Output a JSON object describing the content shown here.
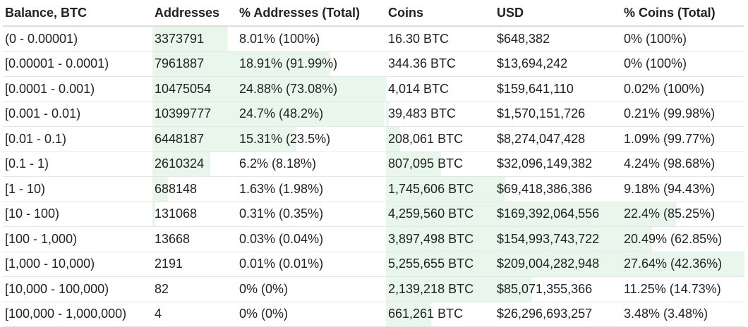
{
  "colors": {
    "bar_fill": "#e8f6ec",
    "header_rule": "#dedede",
    "row_rule": "#e6e6e6",
    "text": "#222222"
  },
  "table": {
    "headers": [
      "Balance, BTC",
      "Addresses",
      "% Addresses (Total)",
      "Coins",
      "USD",
      "% Coins (Total)"
    ],
    "rows": [
      {
        "balance": "(0 - 0.00001)",
        "addresses": "3373791",
        "pct_addresses": "8.01% (100%)",
        "coins": "16.30 BTC",
        "usd": "$648,382",
        "pct_coins": "0% (100%)",
        "addr_share": 8.01,
        "coin_share": 0
      },
      {
        "balance": "[0.00001 - 0.0001)",
        "addresses": "7961887",
        "pct_addresses": "18.91% (91.99%)",
        "coins": "344.36 BTC",
        "usd": "$13,694,242",
        "pct_coins": "0% (100%)",
        "addr_share": 18.91,
        "coin_share": 0
      },
      {
        "balance": "[0.0001 - 0.001)",
        "addresses": "10475054",
        "pct_addresses": "24.88% (73.08%)",
        "coins": "4,014 BTC",
        "usd": "$159,641,110",
        "pct_coins": "0.02% (100%)",
        "addr_share": 24.88,
        "coin_share": 0.02
      },
      {
        "balance": "[0.001 - 0.01)",
        "addresses": "10399777",
        "pct_addresses": "24.7% (48.2%)",
        "coins": "39,483 BTC",
        "usd": "$1,570,151,726",
        "pct_coins": "0.21% (99.98%)",
        "addr_share": 24.7,
        "coin_share": 0.21
      },
      {
        "balance": "[0.01 - 0.1)",
        "addresses": "6448187",
        "pct_addresses": "15.31% (23.5%)",
        "coins": "208,061 BTC",
        "usd": "$8,274,047,428",
        "pct_coins": "1.09% (99.77%)",
        "addr_share": 15.31,
        "coin_share": 1.09
      },
      {
        "balance": "[0.1 - 1)",
        "addresses": "2610324",
        "pct_addresses": "6.2% (8.18%)",
        "coins": "807,095 BTC",
        "usd": "$32,096,149,382",
        "pct_coins": "4.24% (98.68%)",
        "addr_share": 6.2,
        "coin_share": 4.24
      },
      {
        "balance": "[1 - 10)",
        "addresses": "688148",
        "pct_addresses": "1.63% (1.98%)",
        "coins": "1,745,606 BTC",
        "usd": "$69,418,386,386",
        "pct_coins": "9.18% (94.43%)",
        "addr_share": 1.63,
        "coin_share": 9.18
      },
      {
        "balance": "[10 - 100)",
        "addresses": "131068",
        "pct_addresses": "0.31% (0.35%)",
        "coins": "4,259,560 BTC",
        "usd": "$169,392,064,556",
        "pct_coins": "22.4% (85.25%)",
        "addr_share": 0.31,
        "coin_share": 22.4
      },
      {
        "balance": "[100 - 1,000)",
        "addresses": "13668",
        "pct_addresses": "0.03% (0.04%)",
        "coins": "3,897,498 BTC",
        "usd": "$154,993,743,722",
        "pct_coins": "20.49% (62.85%)",
        "addr_share": 0.03,
        "coin_share": 20.49
      },
      {
        "balance": "[1,000 - 10,000)",
        "addresses": "2191",
        "pct_addresses": "0.01% (0.01%)",
        "coins": "5,255,655 BTC",
        "usd": "$209,004,282,948",
        "pct_coins": "27.64% (42.36%)",
        "addr_share": 0.01,
        "coin_share": 27.64
      },
      {
        "balance": "[10,000 - 100,000)",
        "addresses": "82",
        "pct_addresses": "0% (0%)",
        "coins": "2,139,218 BTC",
        "usd": "$85,071,355,366",
        "pct_coins": "11.25% (14.73%)",
        "addr_share": 0,
        "coin_share": 11.25
      },
      {
        "balance": "[100,000 - 1,000,000)",
        "addresses": "4",
        "pct_addresses": "0% (0%)",
        "coins": "661,261 BTC",
        "usd": "$26,296,693,257",
        "pct_coins": "3.48% (3.48%)",
        "addr_share": 0,
        "coin_share": 3.48
      }
    ]
  }
}
